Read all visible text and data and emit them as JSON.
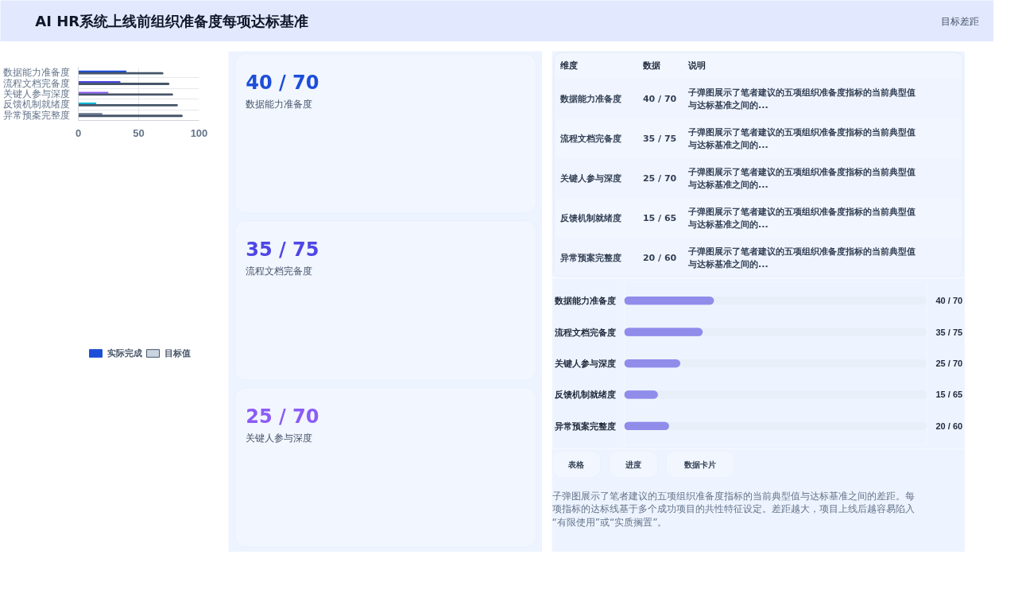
{
  "chart_data": [
    {
      "type": "other",
      "title": "AI HR系统上线前组织准备度每项达标基准",
      "annotations": [
        "目标差距"
      ]
    },
    {
      "type": "bar",
      "orientation": "horizontal",
      "categories": [
        "数据能力准备度",
        "流程文档完备度",
        "关键人参与深度",
        "反馈机制就绪度",
        "异常预案完整度"
      ],
      "series": [
        {
          "name": "实际完成",
          "color": "#1d4ed8",
          "colors": [
            "#1d4ed8",
            "#4f46e5",
            "#8b5cf6",
            "#06b6d4",
            "#64748b"
          ],
          "values": [
            40,
            35,
            25,
            15,
            20
          ]
        },
        {
          "name": "目标值",
          "color": "#cbd5e1",
          "values": [
            70,
            75,
            78,
            82,
            86
          ]
        }
      ],
      "xlim": [
        0,
        100
      ],
      "xticks": [
        0,
        50,
        100
      ],
      "grid": true,
      "legend": "bottom"
    },
    {
      "type": "other",
      "categories": [
        "数据能力准备度",
        "流程文档完备度",
        "关键人参与深度"
      ],
      "value_labels": [
        "40 / 70",
        "35 / 75",
        "25 / 70"
      ]
    },
    {
      "type": "other",
      "categories": [
        "数据能力准备度",
        "流程文档完备度",
        "关键人参与深度",
        "反馈机制就绪度",
        "异常预案完整度"
      ],
      "value_labels": [
        "40 / 70",
        "35 / 75",
        "25 / 70",
        "15 / 65",
        "20 / 60"
      ],
      "annotations": [
        "维度",
        "数据",
        "说明",
        "子弹图展示了笔者建议的五项组织准备度指标的当前典型值与达标基准之间的...",
        "子弹图展示了笔者建议的五项组织准备度指标的当前典型值与达标基准之间的...",
        "子弹图展示了笔者建议的五项组织准备度指标的当前典型值与达标基准之间的...",
        "子弹图展示了笔者建议的五项组织准备度指标的当前典型值与达标基准之间的...",
        "子弹图展示了笔者建议的五项组织准备度指标的当前典型值与达标基准之间的..."
      ]
    },
    {
      "type": "bar",
      "orientation": "horizontal",
      "categories": [
        "数据能力准备度",
        "流程文档完备度",
        "关键人参与深度",
        "反馈机制就绪度",
        "异常预案完整度"
      ],
      "values": [
        40,
        35,
        25,
        15,
        20
      ],
      "color": "#5b4fe6",
      "value_labels": [
        "40 / 70",
        "35 / 75",
        "25 / 70",
        "15 / 65",
        "20 / 60"
      ],
      "tick_labels": "y"
    },
    {
      "type": "other",
      "annotations": [
        "表格",
        "进度",
        "数据卡片",
        "子弹图展示了笔者建议的五项组织准备度指标的当前典型值与达标基准之间的差距。每项指标的达标线基于多个成功项目的共性特征设定。差距越大，项目上线后越容易陷入“有限使用”或“实质搁置”。"
      ]
    }
  ]
}
